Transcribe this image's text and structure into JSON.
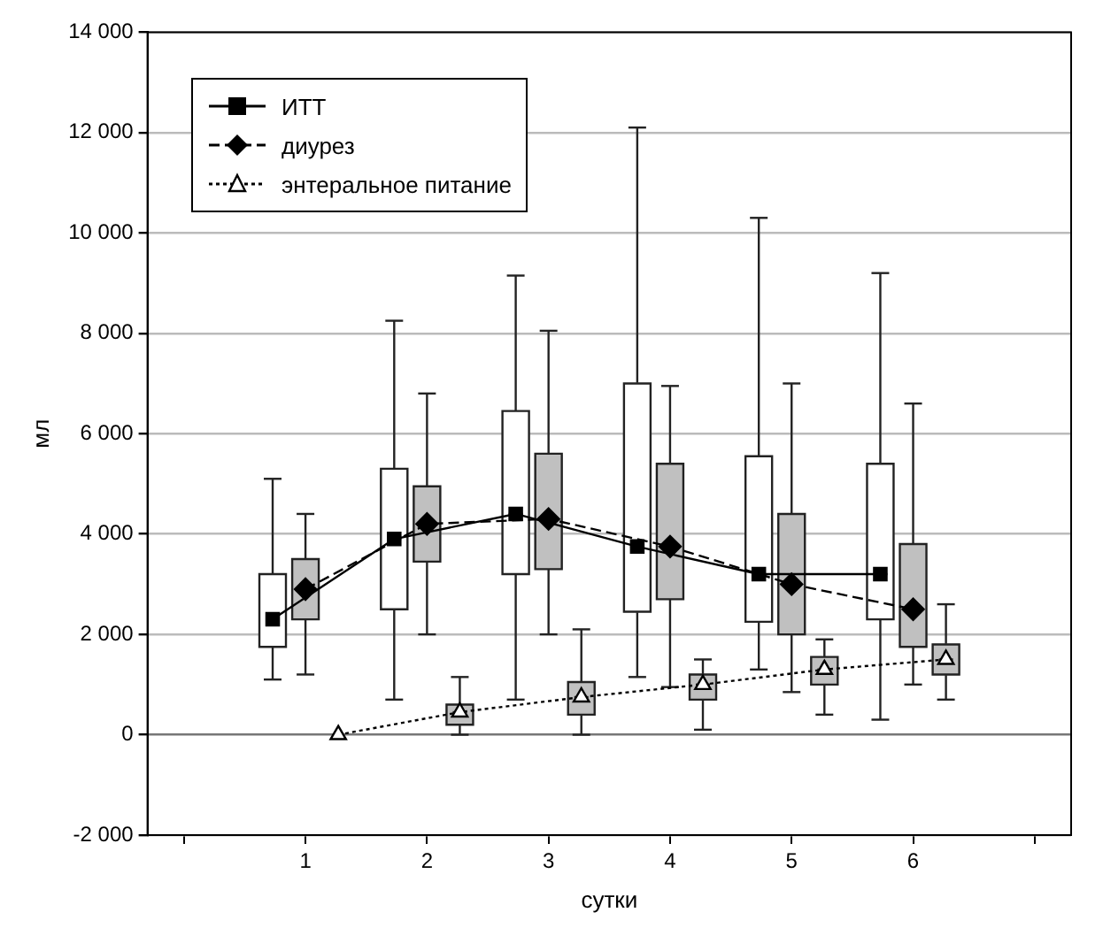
{
  "chart_data": {
    "type": "box",
    "xlabel": "сутки",
    "ylabel": "мл",
    "xlim": [
      -0.3,
      7.3
    ],
    "xticks": [
      {
        "value": 0,
        "label": null
      },
      1,
      2,
      3,
      4,
      5,
      6,
      {
        "value": 7,
        "label": null
      }
    ],
    "ylim": [
      -2000,
      14000
    ],
    "yticks": [
      {
        "value": -2000,
        "label": "-2 000"
      },
      {
        "value": 0,
        "label": "0"
      },
      {
        "value": 2000,
        "label": "2 000"
      },
      {
        "value": 4000,
        "label": "4 000"
      },
      {
        "value": 6000,
        "label": "6 000"
      },
      {
        "value": 8000,
        "label": "8 000"
      },
      {
        "value": 10000,
        "label": "10 000"
      },
      {
        "value": 12000,
        "label": "12 000"
      },
      {
        "value": 14000,
        "label": "14 000"
      }
    ],
    "grid": "y",
    "legend": "top left",
    "series": [
      {
        "color": "#ffffff",
        "x": [
          0.73,
          1.73,
          2.73,
          3.73,
          4.73,
          5.73
        ],
        "boxes": [
          {
            "low": 1100,
            "q1": 1750,
            "median": 2300,
            "q3": 3200,
            "high": 5100
          },
          {
            "low": 700,
            "q1": 2500,
            "median": 3900,
            "q3": 5300,
            "high": 8250
          },
          {
            "low": 700,
            "q1": 3200,
            "median": 4400,
            "q3": 6450,
            "high": 9150
          },
          {
            "low": 1150,
            "q1": 2450,
            "median": 3750,
            "q3": 7000,
            "high": 12100
          },
          {
            "low": 1300,
            "q1": 2250,
            "median": 3200,
            "q3": 5550,
            "high": 10300
          },
          {
            "low": 300,
            "q1": 2300,
            "median": 3200,
            "q3": 5400,
            "high": 9200
          }
        ]
      },
      {
        "color": "#c0c0c0",
        "x": [
          1,
          2,
          3,
          4,
          5,
          6
        ],
        "boxes": [
          {
            "low": 1200,
            "q1": 2300,
            "median": 2900,
            "q3": 3500,
            "high": 4400
          },
          {
            "low": 2000,
            "q1": 3450,
            "median": 4200,
            "q3": 4950,
            "high": 6800
          },
          {
            "low": 2000,
            "q1": 3300,
            "median": 4300,
            "q3": 5600,
            "high": 8050
          },
          {
            "low": 950,
            "q1": 2700,
            "median": 3750,
            "q3": 5400,
            "high": 6950
          },
          {
            "low": 850,
            "q1": 2000,
            "median": 3000,
            "q3": 4400,
            "high": 7000
          },
          {
            "low": 1000,
            "q1": 1750,
            "median": 2500,
            "q3": 3800,
            "high": 6600
          }
        ]
      },
      {
        "color": "#c0c0c0",
        "x": [
          2.27,
          3.27,
          4.27,
          5.27,
          6.27
        ],
        "boxes": [
          {
            "low": 0,
            "q1": 200,
            "median": 450,
            "q3": 600,
            "high": 1150
          },
          {
            "low": 0,
            "q1": 400,
            "median": 750,
            "q3": 1050,
            "high": 2100
          },
          {
            "low": 100,
            "q1": 700,
            "median": 1000,
            "q3": 1200,
            "high": 1500
          },
          {
            "low": 400,
            "q1": 1000,
            "median": 1300,
            "q3": 1550,
            "high": 1900
          },
          {
            "low": 700,
            "q1": 1200,
            "median": 1500,
            "q3": 1800,
            "high": 2600
          }
        ]
      },
      {
        "type": "line",
        "name": "ИТТ",
        "color": "#000000",
        "marker": "square",
        "line_style": "solid",
        "x": [
          0.73,
          1.73,
          2.73,
          3.73,
          4.73,
          5.73
        ],
        "values": [
          2300,
          3900,
          4400,
          3750,
          3200,
          3200
        ]
      },
      {
        "type": "line",
        "name": "диурез",
        "color": "#000000",
        "marker": "diamond",
        "line_style": "dashed",
        "x": [
          1,
          2,
          3,
          4,
          5,
          6
        ],
        "values": [
          2900,
          4200,
          4300,
          3750,
          3000,
          2500
        ]
      },
      {
        "type": "line",
        "name": "энтеральное питание",
        "color": "#000000",
        "marker": "triangle",
        "line_style": "dotted",
        "x": [
          1.27,
          2.27,
          3.27,
          4.27,
          5.27,
          6.27
        ],
        "values": [
          0,
          450,
          750,
          1000,
          1300,
          1500
        ]
      }
    ]
  }
}
